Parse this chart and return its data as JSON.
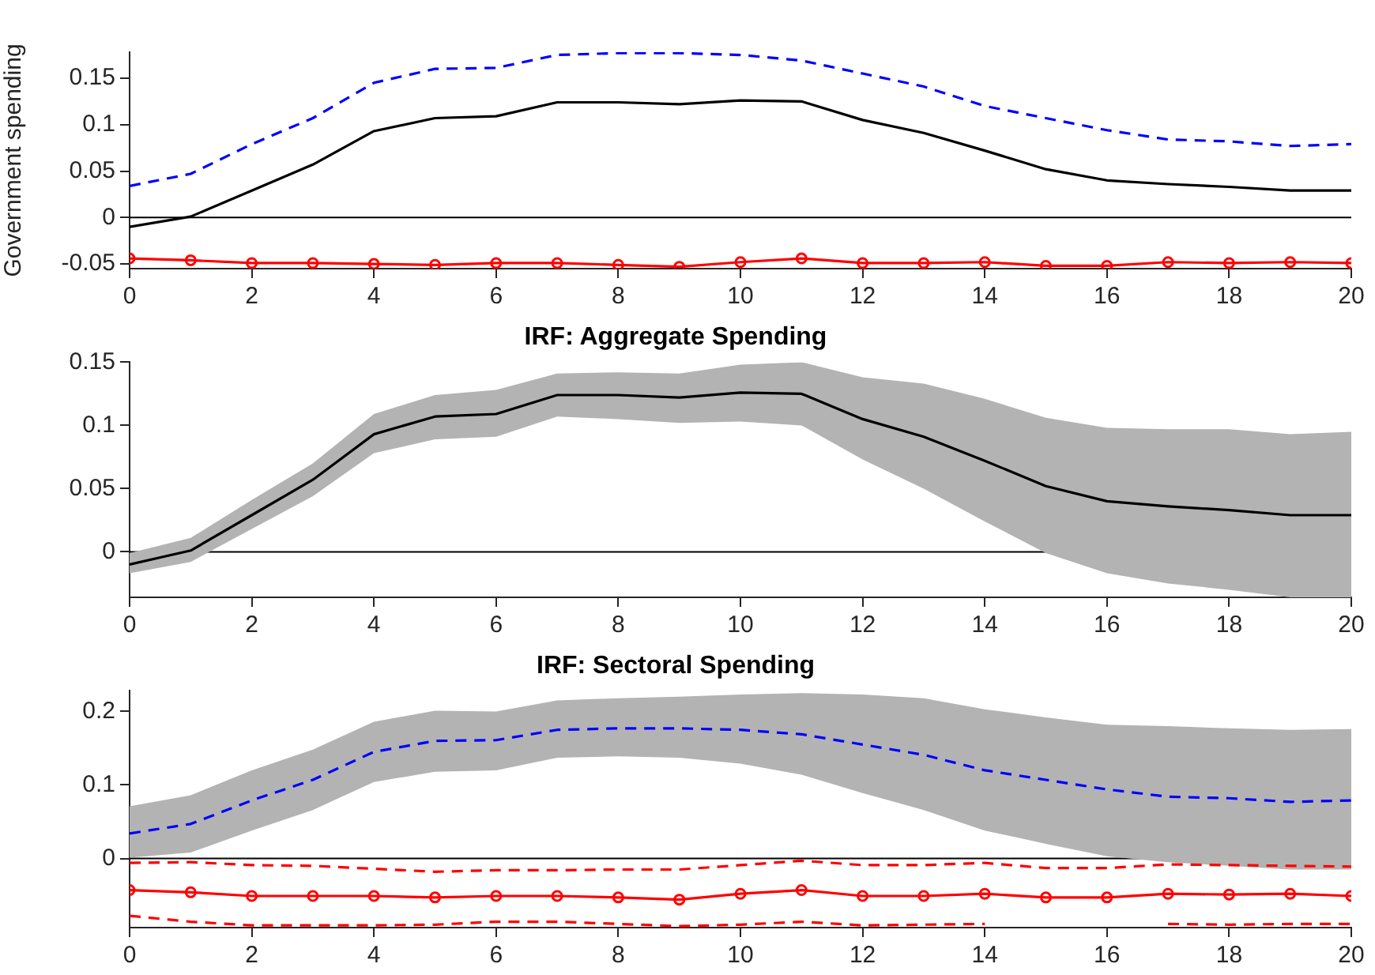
{
  "chart_data": [
    {
      "type": "line",
      "ylabel": "Government spending",
      "x": [
        0,
        1,
        2,
        3,
        4,
        5,
        6,
        7,
        8,
        9,
        10,
        11,
        12,
        13,
        14,
        15,
        16,
        17,
        18,
        19,
        20
      ],
      "xlim": [
        0,
        20
      ],
      "xticks": [
        0,
        2,
        4,
        6,
        8,
        10,
        12,
        14,
        16,
        18,
        20
      ],
      "ylim": [
        -0.055,
        0.178
      ],
      "yticks": [
        -0.05,
        0,
        0.05,
        0.1,
        0.15
      ],
      "grid": false,
      "legend": false,
      "ref_lines": [
        {
          "axis": "y",
          "value": 0,
          "color": "#000000"
        }
      ],
      "series": [
        {
          "color": "#0000ff",
          "line_style": "dashed",
          "marker": "none",
          "values": [
            0.034,
            0.047,
            0.079,
            0.107,
            0.145,
            0.16,
            0.161,
            0.175,
            0.177,
            0.177,
            0.175,
            0.169,
            0.155,
            0.141,
            0.12,
            0.107,
            0.094,
            0.084,
            0.082,
            0.077,
            0.079
          ]
        },
        {
          "color": "#000000",
          "line_style": "solid",
          "marker": "none",
          "values": [
            -0.01,
            0.001,
            0.029,
            0.057,
            0.093,
            0.107,
            0.109,
            0.124,
            0.124,
            0.122,
            0.126,
            0.125,
            0.105,
            0.091,
            0.072,
            0.052,
            0.04,
            0.036,
            0.033,
            0.029,
            0.029
          ]
        },
        {
          "color": "#ff0000",
          "line_style": "solid",
          "marker": "circle",
          "values": [
            -0.044,
            -0.046,
            -0.049,
            -0.049,
            -0.05,
            -0.051,
            -0.049,
            -0.049,
            -0.051,
            -0.053,
            -0.048,
            -0.044,
            -0.049,
            -0.049,
            -0.048,
            -0.052,
            -0.052,
            -0.048,
            -0.049,
            -0.048,
            -0.049
          ]
        }
      ]
    },
    {
      "type": "line",
      "title": "IRF: Aggregate Spending",
      "x": [
        0,
        1,
        2,
        3,
        4,
        5,
        6,
        7,
        8,
        9,
        10,
        11,
        12,
        13,
        14,
        15,
        16,
        17,
        18,
        19,
        20
      ],
      "xlim": [
        0,
        20
      ],
      "xticks": [
        0,
        2,
        4,
        6,
        8,
        10,
        12,
        14,
        16,
        18,
        20
      ],
      "ylim": [
        -0.036,
        0.15
      ],
      "yticks": [
        0,
        0.05,
        0.1,
        0.15
      ],
      "grid": false,
      "legend": false,
      "ref_lines": [
        {
          "axis": "y",
          "value": 0,
          "color": "#000000"
        }
      ],
      "series": [
        {
          "color": "#000000",
          "line_style": "solid",
          "marker": "none",
          "values": [
            -0.01,
            0.001,
            0.029,
            0.057,
            0.093,
            0.107,
            0.109,
            0.124,
            0.124,
            0.122,
            0.126,
            0.125,
            0.105,
            0.091,
            0.072,
            0.052,
            0.04,
            0.036,
            0.033,
            0.029,
            0.029
          ],
          "lower": [
            -0.017,
            -0.008,
            0.018,
            0.044,
            0.078,
            0.089,
            0.091,
            0.107,
            0.105,
            0.102,
            0.103,
            0.1,
            0.073,
            0.05,
            0.024,
            -0.001,
            -0.017,
            -0.025,
            -0.03,
            -0.036,
            -0.036
          ],
          "upper": [
            -0.001,
            0.011,
            0.041,
            0.07,
            0.109,
            0.124,
            0.128,
            0.141,
            0.142,
            0.141,
            0.148,
            0.15,
            0.138,
            0.133,
            0.121,
            0.106,
            0.098,
            0.097,
            0.097,
            0.093,
            0.095
          ]
        }
      ]
    },
    {
      "type": "line",
      "title": "IRF: Sectoral Spending",
      "x": [
        0,
        1,
        2,
        3,
        4,
        5,
        6,
        7,
        8,
        9,
        10,
        11,
        12,
        13,
        14,
        15,
        16,
        17,
        18,
        19,
        20
      ],
      "xlim": [
        0,
        20
      ],
      "xticks": [
        0,
        2,
        4,
        6,
        8,
        10,
        12,
        14,
        16,
        18,
        20
      ],
      "ylim": [
        -0.094,
        0.228
      ],
      "yticks": [
        0,
        0.1,
        0.2
      ],
      "grid": false,
      "legend": false,
      "ref_lines": [
        {
          "axis": "y",
          "value": 0,
          "color": "#000000"
        }
      ],
      "series": [
        {
          "color": "#0000ff",
          "line_style": "dashed",
          "marker": "none",
          "values": [
            0.034,
            0.047,
            0.079,
            0.107,
            0.145,
            0.16,
            0.161,
            0.175,
            0.177,
            0.177,
            0.175,
            0.169,
            0.155,
            0.141,
            0.12,
            0.107,
            0.094,
            0.084,
            0.082,
            0.077,
            0.079
          ],
          "lower": [
            0.001,
            0.008,
            0.038,
            0.066,
            0.104,
            0.118,
            0.12,
            0.137,
            0.139,
            0.137,
            0.129,
            0.114,
            0.089,
            0.066,
            0.038,
            0.02,
            0.003,
            -0.005,
            -0.01,
            -0.015,
            -0.015
          ],
          "upper": [
            0.071,
            0.086,
            0.12,
            0.148,
            0.186,
            0.201,
            0.2,
            0.215,
            0.218,
            0.22,
            0.223,
            0.225,
            0.223,
            0.218,
            0.203,
            0.192,
            0.182,
            0.18,
            0.177,
            0.175,
            0.176
          ]
        },
        {
          "color": "#ff0000",
          "line_style": "dashed",
          "marker": "none",
          "values": [
            -0.006,
            -0.005,
            -0.009,
            -0.01,
            -0.014,
            -0.018,
            -0.016,
            -0.016,
            -0.015,
            -0.015,
            -0.009,
            -0.003,
            -0.009,
            -0.009,
            -0.006,
            -0.013,
            -0.013,
            -0.008,
            -0.009,
            -0.01,
            -0.011
          ]
        },
        {
          "color": "#ff0000",
          "line_style": "solid",
          "marker": "circle",
          "values": [
            -0.043,
            -0.046,
            -0.051,
            -0.051,
            -0.051,
            -0.053,
            -0.051,
            -0.051,
            -0.053,
            -0.056,
            -0.048,
            -0.043,
            -0.051,
            -0.051,
            -0.048,
            -0.053,
            -0.053,
            -0.048,
            -0.049,
            -0.048,
            -0.051
          ]
        },
        {
          "color": "#ff0000",
          "line_style": "dashed",
          "marker": "none",
          "values": [
            -0.078,
            -0.086,
            -0.091,
            -0.091,
            -0.091,
            -0.09,
            -0.086,
            -0.086,
            -0.089,
            -0.092,
            -0.09,
            -0.086,
            -0.091,
            -0.09,
            -0.089,
            null,
            null,
            -0.089,
            -0.09,
            -0.089,
            -0.089
          ]
        }
      ]
    }
  ]
}
